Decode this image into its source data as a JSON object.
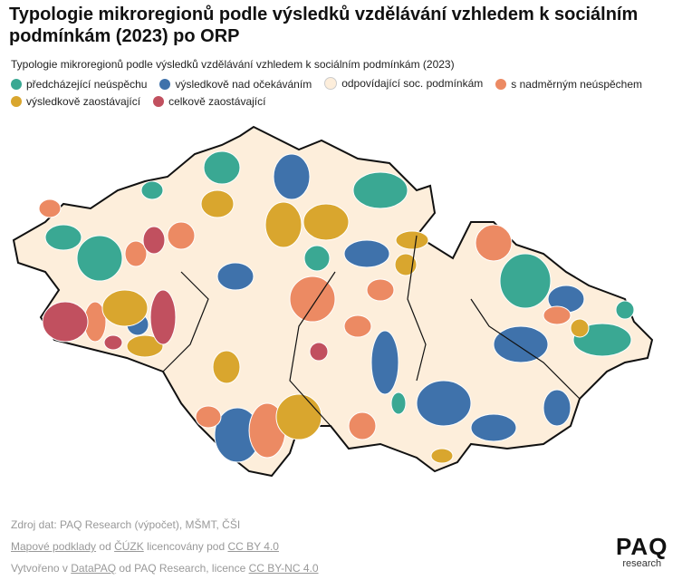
{
  "header": {
    "title_lines": [
      "Typologie mikroregionů podle výsledků vzdělávání vzhledem k sociálním",
      "podmínkám (2023) po ORP"
    ],
    "subtitle": "Typologie mikroregionů podle výsledků vzdělávání vzhledem k sociálním podmínkám (2023)"
  },
  "legend": {
    "items": [
      {
        "label": "předcházející neúspěchu",
        "color": "#3aa893"
      },
      {
        "label": "výsledkově nad očekáváním",
        "color": "#3f72ab"
      },
      {
        "label": "odpovídající soc. podmínkám",
        "color": "#fdeedb"
      },
      {
        "label": "s nadměrným neúspěchem",
        "color": "#ec8a63"
      },
      {
        "label": "výsledkově zaostávající",
        "color": "#d9a62e"
      },
      {
        "label": "celkově zaostávající",
        "color": "#c1505f"
      }
    ]
  },
  "footer": {
    "lines": [
      [
        {
          "text": "Zdroj dat: PAQ Research (výpočet), MŠMT, ČŠI",
          "link": false
        }
      ],
      [
        {
          "text": "Mapové podklady",
          "link": true
        },
        {
          "text": " od ",
          "link": false
        },
        {
          "text": "ČÚZK",
          "link": true
        },
        {
          "text": " licencovány pod ",
          "link": false
        },
        {
          "text": "CC BY 4.0",
          "link": true
        }
      ],
      [
        {
          "text": "Vytvořeno v ",
          "link": false
        },
        {
          "text": "DataPAQ",
          "link": true
        },
        {
          "text": " od PAQ Research, licence ",
          "link": false
        },
        {
          "text": "CC BY-NC 4.0",
          "link": true
        }
      ]
    ]
  },
  "logo": {
    "name": "PAQ",
    "sub": "research"
  }
}
